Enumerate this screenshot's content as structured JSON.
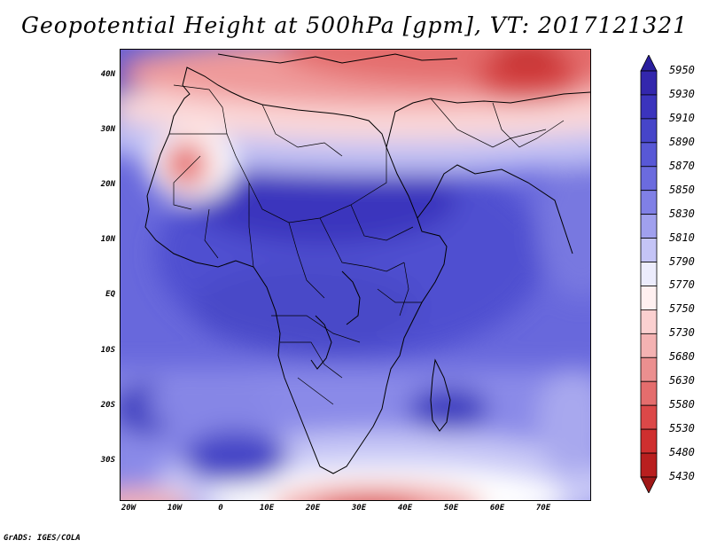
{
  "title": "Geopotential Height at 500hPa [gpm], VT: 2017121321",
  "footer": "GrADS: IGES/COLA",
  "lat_labels": [
    "40N",
    "30N",
    "20N",
    "10N",
    "EQ",
    "10S",
    "20S",
    "30S"
  ],
  "lon_labels": [
    "20W",
    "10W",
    "0",
    "10E",
    "20E",
    "30E",
    "40E",
    "50E",
    "60E",
    "70E"
  ],
  "colorbar": {
    "levels": [
      "5950",
      "5930",
      "5910",
      "5890",
      "5870",
      "5850",
      "5830",
      "5810",
      "5790",
      "5770",
      "5750",
      "5730",
      "5680",
      "5630",
      "5580",
      "5530",
      "5480",
      "5430"
    ],
    "colors": [
      "#2a1f9e",
      "#3327ad",
      "#3b34bd",
      "#4645c9",
      "#5858d6",
      "#6b6bde",
      "#8080e6",
      "#a0a0ee",
      "#c4c4f6",
      "#ececfc",
      "#fff0f0",
      "#fbd0d0",
      "#f4b2b2",
      "#eb8f8f",
      "#e46d6d",
      "#dc4848",
      "#cf2f2f",
      "#b91f1f",
      "#a01818"
    ]
  },
  "map": {
    "region": "Africa",
    "field": "500 hPa geopotential height"
  }
}
